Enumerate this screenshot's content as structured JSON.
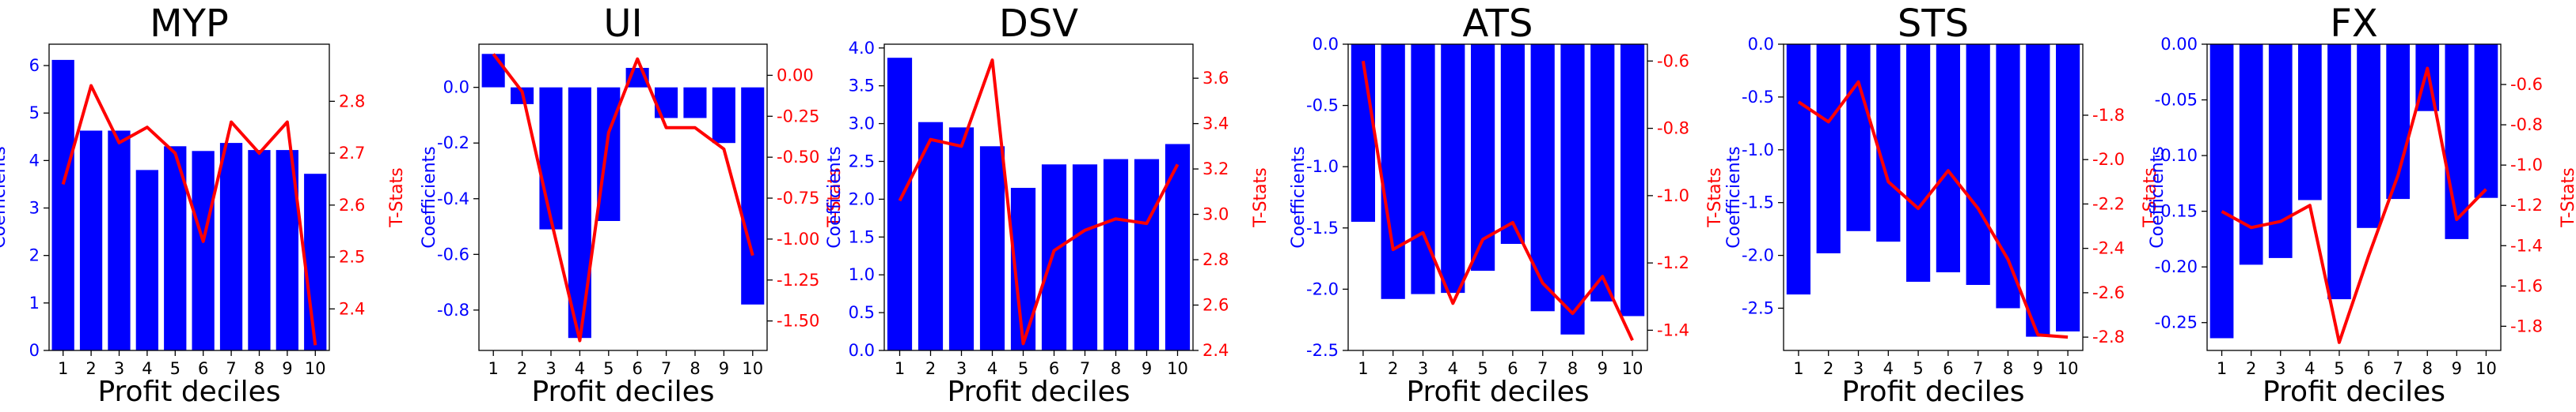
{
  "colors": {
    "bar": "#0000ff",
    "line": "#ff0000",
    "axis": "#000000"
  },
  "chart_data": [
    {
      "type": "bar",
      "title": "MYP",
      "xlabel": "Profit deciles",
      "ylabel": "Coefficients",
      "y2label": "T-Stats",
      "categories": [
        "1",
        "2",
        "3",
        "4",
        "5",
        "6",
        "7",
        "8",
        "9",
        "10"
      ],
      "ylim": [
        0,
        6.45
      ],
      "yticks": [
        0,
        1,
        2,
        3,
        4,
        5,
        6
      ],
      "y2lim": [
        2.32,
        2.91
      ],
      "y2ticks": [
        2.4,
        2.5,
        2.6,
        2.7,
        2.8
      ],
      "series": [
        {
          "kind": "bar",
          "axis": "left",
          "values": [
            6.12,
            4.63,
            4.63,
            3.8,
            4.3,
            4.2,
            4.37,
            4.22,
            4.22,
            3.72
          ]
        },
        {
          "kind": "line",
          "axis": "right",
          "values": [
            2.64,
            2.83,
            2.72,
            2.75,
            2.7,
            2.53,
            2.76,
            2.7,
            2.76,
            2.33
          ]
        }
      ]
    },
    {
      "type": "bar",
      "title": "UI",
      "xlabel": "Profit deciles",
      "ylabel": "Coefficients",
      "y2label": "T-Stats",
      "categories": [
        "1",
        "2",
        "3",
        "4",
        "5",
        "6",
        "7",
        "8",
        "9",
        "10"
      ],
      "ylim": [
        -0.945,
        0.155
      ],
      "yticks": [
        -0.8,
        -0.6,
        -0.4,
        -0.2,
        0.0
      ],
      "y2lim": [
        -1.68,
        0.19
      ],
      "y2ticks": [
        -1.5,
        -1.25,
        -1.0,
        -0.75,
        -0.5,
        -0.25,
        0.0
      ],
      "series": [
        {
          "kind": "bar",
          "axis": "left",
          "values": [
            0.12,
            -0.06,
            -0.51,
            -0.9,
            -0.48,
            0.07,
            -0.11,
            -0.11,
            -0.2,
            -0.78
          ]
        },
        {
          "kind": "line",
          "axis": "right",
          "values": [
            0.13,
            -0.1,
            -0.88,
            -1.62,
            -0.35,
            0.1,
            -0.32,
            -0.32,
            -0.45,
            -1.1
          ]
        }
      ]
    },
    {
      "type": "bar",
      "title": "DSV",
      "xlabel": "Profit deciles",
      "ylabel": "Coefficients",
      "y2label": "T-Stats",
      "categories": [
        "1",
        "2",
        "3",
        "4",
        "5",
        "6",
        "7",
        "8",
        "9",
        "10"
      ],
      "ylim": [
        0,
        4.05
      ],
      "yticks": [
        0.0,
        0.5,
        1.0,
        1.5,
        2.0,
        2.5,
        3.0,
        3.5,
        4.0
      ],
      "y2lim": [
        2.4,
        3.75
      ],
      "y2ticks": [
        2.4,
        2.6,
        2.8,
        3.0,
        3.2,
        3.4,
        3.6
      ],
      "series": [
        {
          "kind": "bar",
          "axis": "left",
          "values": [
            3.87,
            3.02,
            2.95,
            2.7,
            2.15,
            2.46,
            2.46,
            2.53,
            2.53,
            2.73
          ]
        },
        {
          "kind": "line",
          "axis": "right",
          "values": [
            3.06,
            3.33,
            3.3,
            3.68,
            2.43,
            2.84,
            2.93,
            2.98,
            2.96,
            3.22
          ]
        }
      ]
    },
    {
      "type": "bar",
      "title": "ATS",
      "xlabel": "Profit deciles",
      "ylabel": "Coefficients",
      "y2label": "T-Stats",
      "categories": [
        "1",
        "2",
        "3",
        "4",
        "5",
        "6",
        "7",
        "8",
        "9",
        "10"
      ],
      "ylim": [
        -2.5,
        0
      ],
      "yticks": [
        -2.5,
        -2.0,
        -1.5,
        -1.0,
        -0.5,
        0.0
      ],
      "y2lim": [
        -1.46,
        -0.55
      ],
      "y2ticks": [
        -1.4,
        -1.2,
        -1.0,
        -0.8,
        -0.6
      ],
      "series": [
        {
          "kind": "bar",
          "axis": "left",
          "values": [
            -1.45,
            -2.08,
            -2.04,
            -2.03,
            -1.85,
            -1.63,
            -2.18,
            -2.37,
            -2.1,
            -2.22
          ]
        },
        {
          "kind": "line",
          "axis": "right",
          "values": [
            -0.6,
            -1.16,
            -1.11,
            -1.32,
            -1.13,
            -1.08,
            -1.26,
            -1.35,
            -1.24,
            -1.43
          ]
        }
      ]
    },
    {
      "type": "bar",
      "title": "STS",
      "xlabel": "Profit deciles",
      "ylabel": "Coefficients",
      "y2label": "T-Stats",
      "categories": [
        "1",
        "2",
        "3",
        "4",
        "5",
        "6",
        "7",
        "8",
        "9",
        "10"
      ],
      "ylim": [
        -2.9,
        0
      ],
      "yticks": [
        -2.5,
        -2.0,
        -1.5,
        -1.0,
        -0.5,
        0.0
      ],
      "y2lim": [
        -2.86,
        -1.48
      ],
      "y2ticks": [
        -2.8,
        -2.6,
        -2.4,
        -2.2,
        -2.0,
        -1.8
      ],
      "series": [
        {
          "kind": "bar",
          "axis": "left",
          "values": [
            -2.37,
            -1.98,
            -1.77,
            -1.87,
            -2.25,
            -2.16,
            -2.28,
            -2.5,
            -2.77,
            -2.72
          ]
        },
        {
          "kind": "line",
          "axis": "right",
          "values": [
            -1.74,
            -1.83,
            -1.65,
            -2.1,
            -2.22,
            -2.05,
            -2.22,
            -2.45,
            -2.79,
            -2.8
          ]
        }
      ]
    },
    {
      "type": "bar",
      "title": "FX",
      "xlabel": "Profit deciles",
      "ylabel": "Coefficients",
      "y2label": "T-Stats",
      "categories": [
        "1",
        "2",
        "3",
        "4",
        "5",
        "6",
        "7",
        "8",
        "9",
        "10"
      ],
      "ylim": [
        -0.275,
        0
      ],
      "yticks": [
        -0.25,
        -0.2,
        -0.15,
        -0.1,
        -0.05,
        0.0
      ],
      "y2lim": [
        -1.92,
        -0.4
      ],
      "y2ticks": [
        -1.8,
        -1.6,
        -1.4,
        -1.2,
        -1.0,
        -0.8,
        -0.6
      ],
      "series": [
        {
          "kind": "bar",
          "axis": "left",
          "values": [
            -0.264,
            -0.198,
            -0.192,
            -0.14,
            -0.229,
            -0.165,
            -0.139,
            -0.06,
            -0.175,
            -0.138
          ]
        },
        {
          "kind": "line",
          "axis": "right",
          "values": [
            -1.23,
            -1.31,
            -1.28,
            -1.2,
            -1.88,
            -1.45,
            -1.05,
            -0.52,
            -1.27,
            -1.12
          ]
        }
      ]
    }
  ]
}
